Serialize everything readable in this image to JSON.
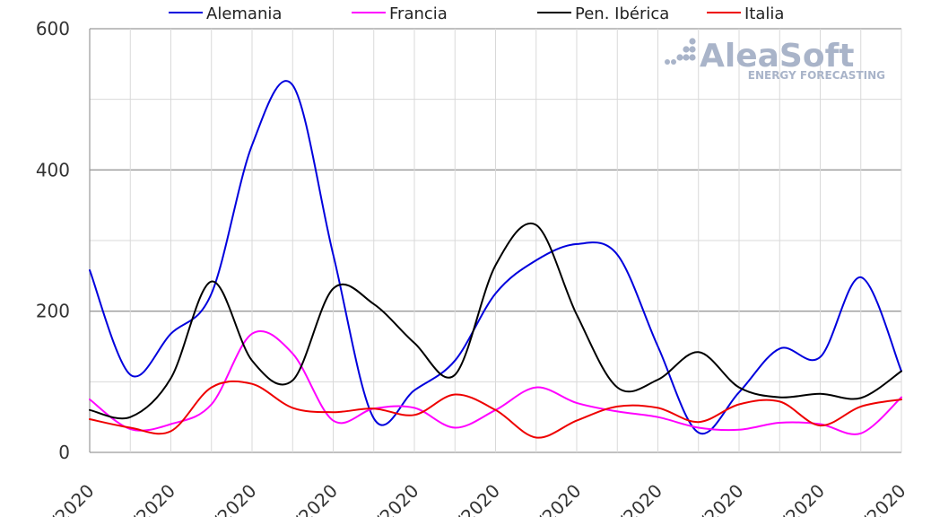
{
  "chart_data": {
    "type": "line",
    "categories": [
      "/2020",
      "/2020",
      "/2020",
      "/2020",
      "/2020",
      "/2020",
      "/2020",
      "/2020",
      "/2020",
      "/2020",
      "/2020"
    ],
    "x": [
      0,
      1,
      2,
      3,
      4,
      5,
      6,
      7,
      8,
      9,
      10,
      11,
      12,
      13,
      14,
      15,
      16,
      17,
      18,
      19,
      20
    ],
    "ylim": [
      0,
      600
    ],
    "yticks": [
      "0",
      "200",
      "400",
      "600"
    ],
    "grid": true,
    "legend": "top",
    "series": [
      {
        "name": "Alemania",
        "color": "#0000dd",
        "values": [
          258,
          110,
          168,
          225,
          435,
          520,
          280,
          48,
          88,
          130,
          225,
          272,
          295,
          280,
          150,
          28,
          85,
          147,
          135,
          248,
          115
        ]
      },
      {
        "name": "Francia",
        "color": "#ff00ff",
        "values": [
          75,
          33,
          40,
          68,
          168,
          140,
          45,
          62,
          63,
          35,
          60,
          92,
          70,
          58,
          50,
          35,
          32,
          42,
          40,
          27,
          78
        ]
      },
      {
        "name": "Pen. Ibérica",
        "color": "#000000",
        "values": [
          60,
          50,
          105,
          242,
          130,
          102,
          232,
          210,
          155,
          110,
          265,
          322,
          195,
          92,
          103,
          142,
          92,
          78,
          83,
          77,
          115
        ]
      },
      {
        "name": "Italia",
        "color": "#ee0000",
        "values": [
          47,
          35,
          30,
          92,
          97,
          63,
          57,
          62,
          53,
          82,
          60,
          21,
          45,
          65,
          63,
          43,
          68,
          72,
          38,
          65,
          75
        ]
      }
    ]
  },
  "logo": {
    "name": "AleaSoft",
    "tagline": "ENERGY FORECASTING"
  }
}
